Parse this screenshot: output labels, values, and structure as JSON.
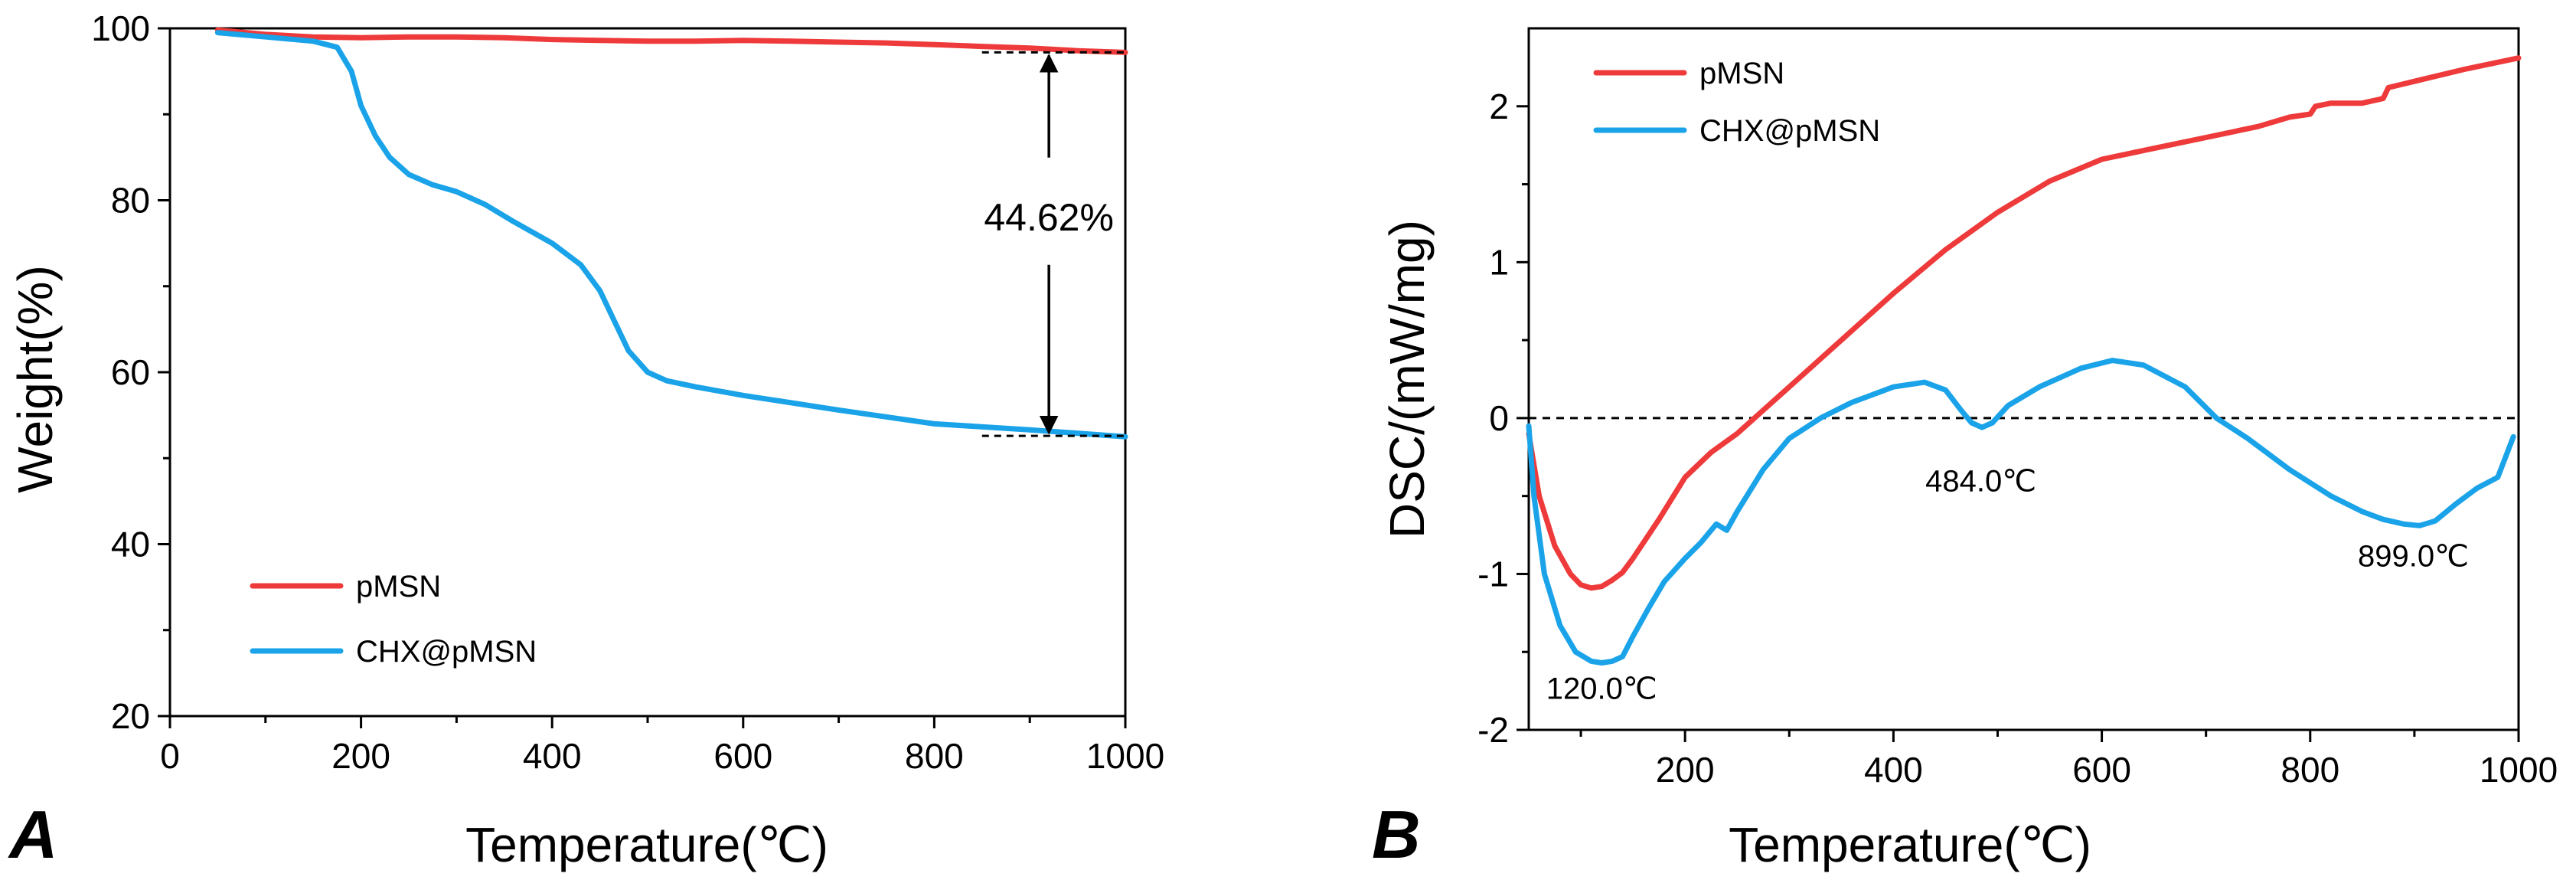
{
  "colors": {
    "pMSN": "#ee3a3a",
    "CHX@pMSN": "#1aa3e8",
    "axis": "#000000"
  },
  "panels": [
    {
      "letter": "A"
    },
    {
      "letter": "B"
    }
  ],
  "chart_data": [
    {
      "type": "line",
      "xlabel": "Temperature(℃)",
      "ylabel": "Weight(%)",
      "xlim": [
        0,
        1000
      ],
      "ylim": [
        20,
        100
      ],
      "xticks": [
        0,
        200,
        400,
        600,
        800,
        1000
      ],
      "yticks": [
        20,
        40,
        60,
        80,
        100
      ],
      "legend_position": "bottom-left",
      "grid": false,
      "series": [
        {
          "name": "pMSN",
          "x": [
            50,
            100,
            150,
            200,
            250,
            300,
            350,
            400,
            450,
            500,
            550,
            600,
            650,
            700,
            750,
            800,
            850,
            900,
            950,
            1000
          ],
          "y": [
            99.8,
            99.3,
            99.0,
            98.9,
            99.0,
            99.0,
            98.9,
            98.7,
            98.6,
            98.5,
            98.5,
            98.6,
            98.5,
            98.4,
            98.3,
            98.1,
            97.9,
            97.7,
            97.4,
            97.2
          ]
        },
        {
          "name": "CHX@pMSN",
          "x": [
            50,
            100,
            150,
            175,
            190,
            200,
            215,
            230,
            250,
            275,
            300,
            330,
            360,
            400,
            430,
            450,
            465,
            480,
            500,
            520,
            550,
            600,
            700,
            800,
            900,
            1000
          ],
          "y": [
            99.5,
            99.0,
            98.5,
            97.8,
            95.0,
            91.0,
            87.5,
            85.0,
            83.0,
            81.8,
            81.0,
            79.5,
            77.5,
            75.0,
            72.5,
            69.5,
            66.0,
            62.5,
            60.0,
            59.0,
            58.3,
            57.3,
            55.6,
            54.0,
            53.3,
            52.5
          ]
        }
      ],
      "annotations": [
        {
          "text": "44.62%",
          "x": 920,
          "y": 76.5
        }
      ],
      "reference_lines": [
        {
          "x": [
            850,
            1000
          ],
          "y": 97.2
        },
        {
          "x": [
            850,
            1000
          ],
          "y": 52.6
        }
      ]
    },
    {
      "type": "line",
      "xlabel": "Temperature(℃)",
      "ylabel": "DSC/(mW/mg)",
      "xlim": [
        50,
        1000
      ],
      "ylim": [
        -2,
        2.5
      ],
      "xticks": [
        200,
        400,
        600,
        800,
        1000
      ],
      "yticks": [
        -2,
        -1,
        0,
        1,
        2
      ],
      "legend_position": "top-left",
      "grid": false,
      "zero_line": true,
      "series": [
        {
          "name": "pMSN",
          "x": [
            50,
            60,
            75,
            90,
            100,
            110,
            120,
            130,
            140,
            150,
            175,
            200,
            225,
            250,
            275,
            300,
            350,
            400,
            450,
            500,
            550,
            600,
            650,
            700,
            750,
            780,
            800,
            805,
            820,
            850,
            870,
            875,
            900,
            950,
            1000
          ],
          "y": [
            -0.1,
            -0.5,
            -0.82,
            -1.0,
            -1.07,
            -1.09,
            -1.08,
            -1.04,
            -0.99,
            -0.9,
            -0.65,
            -0.38,
            -0.22,
            -0.1,
            0.05,
            0.2,
            0.5,
            0.8,
            1.08,
            1.32,
            1.52,
            1.66,
            1.73,
            1.8,
            1.87,
            1.93,
            1.95,
            2.0,
            2.02,
            2.02,
            2.05,
            2.12,
            2.16,
            2.24,
            2.31
          ]
        },
        {
          "name": "CHX@pMSN",
          "x": [
            50,
            55,
            65,
            80,
            95,
            110,
            120,
            130,
            140,
            150,
            165,
            180,
            200,
            215,
            230,
            240,
            250,
            275,
            300,
            330,
            360,
            400,
            430,
            450,
            465,
            475,
            485,
            495,
            510,
            540,
            580,
            610,
            640,
            680,
            710,
            740,
            780,
            820,
            850,
            870,
            890,
            905,
            920,
            940,
            960,
            980,
            995
          ],
          "y": [
            -0.05,
            -0.5,
            -1.0,
            -1.33,
            -1.5,
            -1.56,
            -1.57,
            -1.56,
            -1.53,
            -1.4,
            -1.22,
            -1.05,
            -0.9,
            -0.8,
            -0.68,
            -0.72,
            -0.6,
            -0.33,
            -0.13,
            0.0,
            0.1,
            0.2,
            0.23,
            0.18,
            0.05,
            -0.03,
            -0.06,
            -0.03,
            0.08,
            0.2,
            0.32,
            0.37,
            0.34,
            0.2,
            0.0,
            -0.13,
            -0.33,
            -0.5,
            -0.6,
            -0.65,
            -0.68,
            -0.69,
            -0.66,
            -0.55,
            -0.45,
            -0.38,
            -0.12
          ]
        }
      ],
      "annotations": [
        {
          "text": "120.0℃",
          "x": 120,
          "y": -1.8
        },
        {
          "text": "484.0℃",
          "x": 484,
          "y": -0.47
        },
        {
          "text": "899.0℃",
          "x": 899,
          "y": -0.95
        }
      ]
    }
  ]
}
